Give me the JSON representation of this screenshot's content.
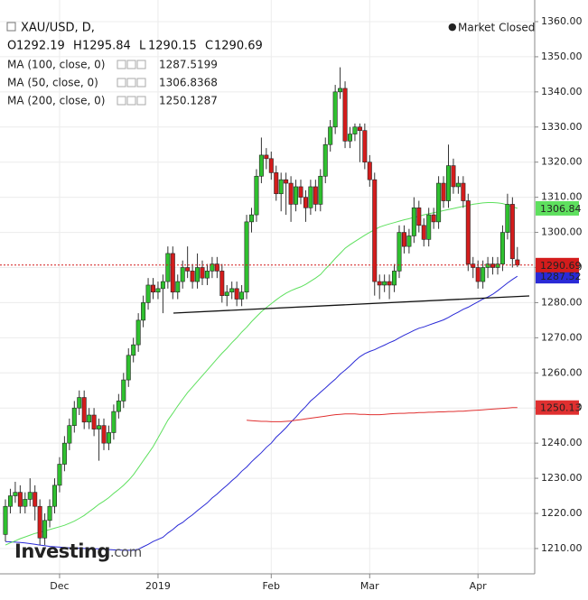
{
  "chart_data": {
    "type": "candlestick",
    "title": "XAU/USD, D,",
    "status": "Market Closed",
    "logo": "Investing",
    "logo_suffix": ".com",
    "ohlc_labels": [
      "O",
      "H",
      "L",
      "C"
    ],
    "up_color": "#2fc12f",
    "down_color": "#d41c1c",
    "grid": true,
    "ylim": [
      1203.05,
      1366.16
    ],
    "yticks": [
      {
        "value": 1210,
        "label": "1210.00"
      },
      {
        "value": 1220,
        "label": "1220.00"
      },
      {
        "value": 1230,
        "label": "1230.00"
      },
      {
        "value": 1240,
        "label": "1240.00"
      },
      {
        "value": 1250,
        "label": "1250.00"
      },
      {
        "value": 1260,
        "label": "1260.00"
      },
      {
        "value": 1270,
        "label": "1270.00"
      },
      {
        "value": 1280,
        "label": "1280.00"
      },
      {
        "value": 1290,
        "label": "1290.00"
      },
      {
        "value": 1300,
        "label": "1300.00"
      },
      {
        "value": 1310,
        "label": "1310.00"
      },
      {
        "value": 1320,
        "label": "1320.00"
      },
      {
        "value": 1330,
        "label": "1330.00"
      },
      {
        "value": 1340,
        "label": "1340.00"
      },
      {
        "value": 1350,
        "label": "1350.00"
      },
      {
        "value": 1360,
        "label": "1360.00"
      }
    ],
    "categories": [
      null,
      null,
      null,
      null,
      null,
      null,
      null,
      null,
      null,
      null,
      null,
      "Dec",
      null,
      null,
      null,
      null,
      null,
      null,
      null,
      null,
      null,
      null,
      null,
      null,
      null,
      null,
      null,
      null,
      null,
      null,
      null,
      "2019",
      null,
      null,
      null,
      null,
      null,
      null,
      null,
      null,
      null,
      null,
      null,
      null,
      null,
      null,
      null,
      null,
      null,
      null,
      null,
      null,
      null,
      null,
      "Feb",
      null,
      null,
      null,
      null,
      null,
      null,
      null,
      null,
      null,
      null,
      null,
      null,
      null,
      null,
      null,
      null,
      null,
      null,
      null,
      "Mar",
      null,
      null,
      null,
      null,
      null,
      null,
      null,
      null,
      null,
      null,
      null,
      null,
      null,
      null,
      null,
      null,
      null,
      null,
      null,
      null,
      null,
      "Apr",
      null,
      null,
      null,
      null,
      null,
      null,
      null,
      null
    ],
    "open": [
      1214,
      1222,
      1225,
      1226,
      1222,
      1224,
      1226,
      1222,
      1213,
      1218,
      1222,
      1228,
      1234,
      1240,
      1245,
      1250,
      1253,
      1246,
      1248,
      1244,
      1245,
      1240,
      1243,
      1249,
      1252,
      1258,
      1265,
      1268,
      1275,
      1280,
      1285,
      1283,
      1284,
      1286,
      1294,
      1283,
      1286,
      1290,
      1289,
      1286,
      1290,
      1287,
      1289,
      1291,
      1289,
      1282,
      1283,
      1284,
      1281,
      1283,
      1303,
      1305,
      1316,
      1322,
      1321,
      1317,
      1311,
      1315,
      1314,
      1308,
      1313,
      1310,
      1307,
      1313,
      1308,
      1316,
      1325,
      1330,
      1340,
      1341,
      1326,
      1328,
      1330,
      1329,
      1320,
      1315,
      1286,
      1285,
      1286,
      1285,
      1289,
      1300,
      1296,
      1299,
      1307,
      1302,
      1298,
      1305,
      1303,
      1314,
      1309,
      1319,
      1313,
      1314,
      1309,
      1291,
      1290,
      1286,
      1290,
      1291,
      1290,
      1291,
      1300,
      1308,
      1292.19
    ],
    "high": [
      1224,
      1227,
      1229,
      1228,
      1226,
      1230,
      1228,
      1224,
      1220,
      1224,
      1230,
      1236,
      1242,
      1247,
      1252,
      1255,
      1255,
      1250,
      1250,
      1247,
      1247,
      1245,
      1251,
      1254,
      1260,
      1267,
      1270,
      1277,
      1282,
      1287,
      1287,
      1286,
      1288,
      1296,
      1296,
      1288,
      1292,
      1296,
      1291,
      1294,
      1292,
      1291,
      1293,
      1293,
      1291,
      1285,
      1286,
      1286,
      1285,
      1305,
      1307,
      1318,
      1327,
      1324,
      1323,
      1319,
      1317,
      1317,
      1316,
      1315,
      1315,
      1312,
      1315,
      1315,
      1318,
      1327,
      1332,
      1342,
      1347,
      1343,
      1330,
      1331,
      1331,
      1331,
      1322,
      1317,
      1288,
      1288,
      1288,
      1291,
      1302,
      1302,
      1301,
      1310,
      1309,
      1304,
      1307,
      1307,
      1316,
      1316,
      1325,
      1321,
      1316,
      1316,
      1311,
      1293,
      1292,
      1292,
      1293,
      1293,
      1293,
      1302,
      1311,
      1310,
      1295.84
    ],
    "low": [
      1212,
      1220,
      1223,
      1220,
      1220,
      1222,
      1218,
      1211,
      1211,
      1216,
      1220,
      1226,
      1232,
      1238,
      1243,
      1248,
      1244,
      1244,
      1242,
      1235,
      1238,
      1238,
      1241,
      1247,
      1250,
      1256,
      1263,
      1266,
      1273,
      1278,
      1281,
      1281,
      1277,
      1284,
      1281,
      1281,
      1284,
      1287,
      1284,
      1284,
      1285,
      1285,
      1287,
      1287,
      1280,
      1279,
      1281,
      1279,
      1279,
      1281,
      1300,
      1303,
      1314,
      1318,
      1315,
      1309,
      1306,
      1305,
      1303,
      1306,
      1308,
      1303,
      1305,
      1306,
      1306,
      1314,
      1323,
      1328,
      1338,
      1324,
      1324,
      1326,
      1320,
      1318,
      1313,
      1282,
      1281,
      1283,
      1281,
      1283,
      1287,
      1294,
      1294,
      1297,
      1300,
      1296,
      1296,
      1301,
      1301,
      1307,
      1307,
      1311,
      1311,
      1307,
      1289,
      1287,
      1284,
      1284,
      1287,
      1288,
      1288,
      1289,
      1298,
      1290,
      1290.15
    ],
    "close": [
      1222,
      1225,
      1226,
      1222,
      1224,
      1226,
      1222,
      1213,
      1218,
      1222,
      1228,
      1234,
      1240,
      1245,
      1250,
      1253,
      1246,
      1248,
      1244,
      1245,
      1240,
      1243,
      1249,
      1252,
      1258,
      1265,
      1268,
      1275,
      1280,
      1285,
      1283,
      1284,
      1286,
      1294,
      1283,
      1286,
      1290,
      1289,
      1286,
      1290,
      1287,
      1289,
      1291,
      1289,
      1282,
      1283,
      1284,
      1281,
      1283,
      1303,
      1305,
      1316,
      1322,
      1321,
      1317,
      1311,
      1315,
      1314,
      1308,
      1313,
      1310,
      1307,
      1313,
      1308,
      1316,
      1325,
      1330,
      1340,
      1341,
      1326,
      1328,
      1330,
      1329,
      1320,
      1315,
      1286,
      1285,
      1286,
      1285,
      1289,
      1300,
      1296,
      1299,
      1307,
      1302,
      1298,
      1305,
      1303,
      1314,
      1309,
      1319,
      1313,
      1314,
      1309,
      1291,
      1290,
      1286,
      1290,
      1291,
      1290,
      1291,
      1300,
      1308,
      1292.5,
      1290.69
    ],
    "series": [
      {
        "name": "MA (100, close, 0)",
        "color": "#2a2ad6",
        "badge_text": "#ffffff",
        "last_label": "1287.52",
        "values": [
          1212,
          1211.9,
          1211.8,
          1211.7,
          1211.6,
          1211.4,
          1211.2,
          1211,
          1210.8,
          1210.6,
          1210.5,
          1210.4,
          1210.3,
          1210.2,
          1210.1,
          1210.1,
          1210,
          1210,
          1209.9,
          1209.9,
          1209.8,
          1209.7,
          1209.6,
          1209.6,
          1209.5,
          1209.5,
          1209.5,
          1209.8,
          1210.5,
          1211.2,
          1212,
          1212.6,
          1213.2,
          1214.4,
          1215.4,
          1216.6,
          1217.4,
          1218.6,
          1219.6,
          1220.8,
          1221.9,
          1223,
          1224.4,
          1225.5,
          1226.8,
          1228,
          1229.3,
          1230.5,
          1232,
          1233.2,
          1234.7,
          1236,
          1237.3,
          1238.8,
          1240,
          1241.7,
          1243,
          1244.4,
          1246,
          1247.4,
          1249,
          1250.4,
          1252,
          1253.2,
          1254.5,
          1255.7,
          1257,
          1258.2,
          1259.6,
          1260.8,
          1262,
          1263.4,
          1264.6,
          1265.5,
          1266.1,
          1266.6,
          1267.3,
          1267.9,
          1268.6,
          1269.2,
          1270,
          1270.7,
          1271.4,
          1272.1,
          1272.7,
          1273.1,
          1273.6,
          1274.1,
          1274.6,
          1275.1,
          1275.8,
          1276.6,
          1277.3,
          1278.1,
          1278.7,
          1279.5,
          1280.2,
          1281,
          1281.6,
          1282.4,
          1283.4,
          1284.5,
          1285.6,
          1286.6,
          1287.5199
        ]
      },
      {
        "name": "MA (50, close, 0)",
        "color": "#5ee05e",
        "badge_text": "#000000",
        "last_label": "1306.84",
        "values": [
          1211,
          1211.6,
          1212.2,
          1212.8,
          1213.3,
          1213.8,
          1214.3,
          1214.6,
          1215,
          1215.4,
          1215.8,
          1216.2,
          1216.6,
          1217.2,
          1217.8,
          1218.6,
          1219.4,
          1220.5,
          1221.5,
          1222.6,
          1223.5,
          1224.5,
          1225.7,
          1226.8,
          1228,
          1229.4,
          1231,
          1233,
          1235,
          1237,
          1239,
          1241.5,
          1244,
          1246.5,
          1248.5,
          1250.6,
          1252.5,
          1254.4,
          1256,
          1257.6,
          1259.2,
          1260.8,
          1262.4,
          1264,
          1265.6,
          1267,
          1268.6,
          1270,
          1271.6,
          1273,
          1274.6,
          1276,
          1277.4,
          1278.6,
          1279.7,
          1280.8,
          1281.8,
          1282.7,
          1283.4,
          1284,
          1284.5,
          1285.2,
          1286.1,
          1287,
          1288,
          1289.6,
          1291,
          1292.6,
          1294,
          1295.5,
          1296.5,
          1297.4,
          1298.3,
          1299.2,
          1300,
          1300.8,
          1301.5,
          1302,
          1302.4,
          1302.8,
          1303.2,
          1303.6,
          1303.9,
          1304.3,
          1304.6,
          1305,
          1305.3,
          1305.6,
          1305.9,
          1306.2,
          1306.5,
          1306.8,
          1307.1,
          1307.4,
          1307.7,
          1308,
          1308.2,
          1308.4,
          1308.5,
          1308.5,
          1308.4,
          1308.2,
          1307.8,
          1307.3,
          1306.8368
        ]
      },
      {
        "name": "MA (200, close, 0)",
        "color": "#e03030",
        "badge_text": "#ffffff",
        "last_label": "1250.13",
        "values": [
          null,
          null,
          null,
          null,
          null,
          null,
          null,
          null,
          null,
          null,
          null,
          null,
          null,
          null,
          null,
          null,
          null,
          null,
          null,
          null,
          null,
          null,
          null,
          null,
          null,
          null,
          null,
          null,
          null,
          null,
          null,
          null,
          null,
          null,
          null,
          null,
          null,
          null,
          null,
          null,
          null,
          null,
          null,
          null,
          null,
          null,
          null,
          null,
          null,
          1246.5,
          1246.4,
          1246.3,
          1246.2,
          1246.2,
          1246.1,
          1246.1,
          1246.1,
          1246.2,
          1246.3,
          1246.5,
          1246.7,
          1246.9,
          1247.1,
          1247.3,
          1247.5,
          1247.7,
          1247.9,
          1248.1,
          1248.2,
          1248.3,
          1248.3,
          1248.3,
          1248.2,
          1248.2,
          1248.1,
          1248.1,
          1248.1,
          1248.2,
          1248.3,
          1248.4,
          1248.5,
          1248.5,
          1248.6,
          1248.6,
          1248.7,
          1248.7,
          1248.8,
          1248.8,
          1248.9,
          1248.9,
          1249,
          1249,
          1249.1,
          1249.1,
          1249.2,
          1249.3,
          1249.4,
          1249.5,
          1249.6,
          1249.7,
          1249.8,
          1249.9,
          1250,
          1250.1,
          1250.1287
        ]
      }
    ]
  }
}
